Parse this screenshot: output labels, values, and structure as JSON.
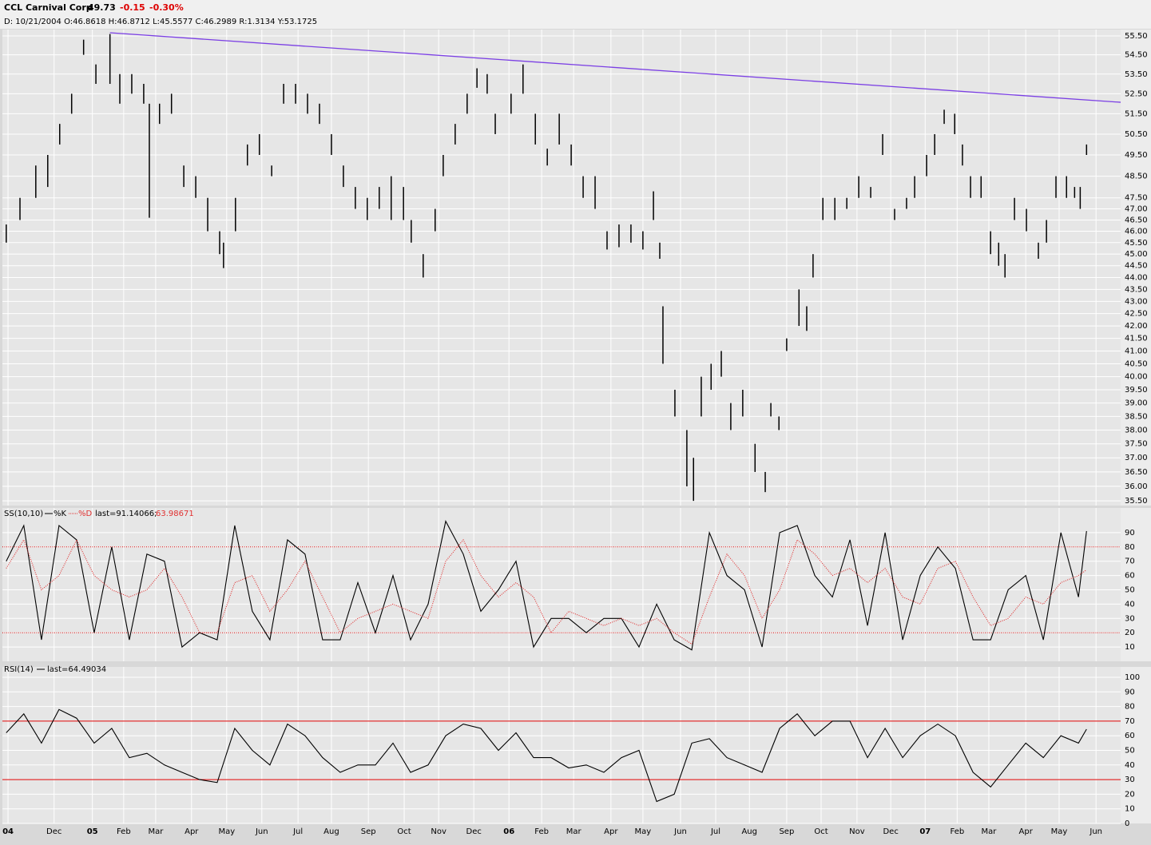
{
  "header": {
    "symbol": "CCL Carnival Corp",
    "last": "49.73",
    "change": "-0.15",
    "change_pct": "-0.30%",
    "info": "D: 10/21/2004 O:46.8618 H:46.8712 L:45.5577 C:46.2989 R:1.3134 Y:53.1725"
  },
  "chart_data": [
    {
      "type": "hilo",
      "log": true,
      "grid": true,
      "color": "#000000",
      "x": [
        0,
        0.39,
        0.84,
        1.18,
        1.52,
        1.86,
        2.2,
        2.55,
        2.95,
        3.23,
        3.57,
        3.91,
        4.07,
        4.36,
        4.7,
        5.05,
        5.39,
        5.73,
        6.07,
        6.18,
        6.52,
        6.86,
        7.2,
        7.55,
        7.89,
        8.23,
        8.57,
        8.91,
        9.25,
        9.59,
        9.93,
        10.27,
        10.61,
        10.95,
        11.3,
        11.52,
        11.86,
        12.2,
        12.43,
        12.77,
        13.11,
        13.39,
        13.68,
        13.91,
        14.36,
        14.7,
        15.05,
        15.39,
        15.73,
        16.07,
        16.41,
        16.75,
        17.09,
        17.43,
        17.77,
        18.11,
        18.41,
        18.59,
        18.68,
        19.02,
        19.36,
        19.55,
        19.77,
        20.05,
        20.34,
        20.61,
        20.95,
        21.3,
        21.59,
        21.75,
        21.98,
        22.2,
        22.55,
        22.77,
        22.95,
        23.23,
        23.57,
        23.91,
        24.25,
        24.59,
        24.93,
        25.27,
        25.61,
        25.84,
        26.18,
        26.41,
        26.68,
        26.98,
        27.2,
        27.43,
        27.73,
        28.0,
        28.23,
        28.41,
        28.68,
        29.02,
        29.36,
        29.59,
        29.86,
        30.16,
        30.39,
        30.55,
        30.73
      ],
      "high": [
        46.3,
        47.5,
        49.0,
        49.5,
        51.0,
        52.5,
        55.3,
        54.0,
        55.6,
        53.5,
        53.5,
        53.0,
        52.0,
        52.0,
        52.5,
        49.0,
        48.5,
        47.5,
        46.0,
        45.5,
        47.5,
        50.0,
        50.5,
        49.0,
        53.0,
        53.0,
        52.5,
        52.0,
        50.5,
        49.0,
        48.0,
        47.5,
        48.0,
        48.5,
        48.0,
        46.5,
        45.0,
        47.0,
        49.5,
        51.0,
        52.5,
        53.8,
        53.5,
        51.5,
        52.5,
        54.0,
        51.5,
        49.8,
        51.5,
        50.0,
        48.5,
        48.5,
        46.0,
        46.3,
        46.3,
        46.0,
        47.8,
        45.5,
        42.8,
        39.5,
        38.0,
        37.0,
        40.0,
        40.5,
        41.0,
        39.0,
        39.5,
        37.5,
        36.5,
        39.0,
        38.5,
        41.5,
        43.5,
        42.8,
        45.0,
        47.5,
        47.5,
        47.5,
        48.5,
        48.0,
        50.5,
        47.0,
        47.5,
        48.5,
        49.5,
        50.5,
        51.7,
        51.5,
        50.0,
        48.5,
        48.5,
        46.0,
        45.5,
        45.0,
        47.5,
        47.0,
        45.5,
        46.5,
        48.5,
        48.5,
        48.0,
        48.0,
        50.0
      ],
      "low": [
        45.5,
        46.5,
        47.5,
        48.0,
        50.0,
        51.5,
        54.5,
        53.0,
        53.0,
        52.0,
        52.5,
        52.0,
        46.6,
        51.0,
        51.5,
        48.0,
        47.5,
        46.0,
        45.0,
        44.4,
        46.0,
        49.0,
        49.5,
        48.5,
        52.0,
        52.0,
        51.5,
        51.0,
        49.5,
        48.0,
        47.0,
        46.5,
        47.0,
        46.5,
        46.5,
        45.5,
        44.0,
        46.0,
        48.5,
        50.0,
        51.5,
        52.8,
        52.5,
        50.5,
        51.5,
        52.5,
        50.0,
        49.0,
        50.0,
        49.0,
        47.5,
        47.0,
        45.2,
        45.3,
        45.5,
        45.2,
        46.5,
        44.8,
        40.5,
        38.5,
        36.0,
        35.5,
        38.5,
        39.5,
        40.0,
        38.0,
        38.5,
        36.5,
        35.8,
        38.5,
        38.0,
        41.0,
        42.0,
        41.8,
        44.0,
        46.5,
        46.5,
        47.0,
        47.5,
        47.5,
        49.5,
        46.5,
        47.0,
        47.5,
        48.5,
        49.5,
        51.0,
        50.5,
        49.0,
        47.5,
        47.5,
        45.0,
        44.5,
        44.0,
        46.5,
        46.0,
        44.8,
        45.5,
        47.5,
        47.5,
        47.5,
        47.0,
        49.5
      ],
      "trendline": {
        "x": [
          2.95,
          31.7
        ],
        "y": [
          55.67,
          52.07
        ],
        "color": "#7b3fe4"
      },
      "ylim": [
        35.34,
        55.84
      ],
      "yticks": [
        {
          "value": 55.5,
          "label": "55.50"
        },
        {
          "value": 54.5,
          "label": "54.50"
        },
        {
          "value": 53.5,
          "label": "53.50"
        },
        {
          "value": 52.5,
          "label": "52.50"
        },
        {
          "value": 51.5,
          "label": "51.50"
        },
        {
          "value": 50.5,
          "label": "50.50"
        },
        {
          "value": 49.5,
          "label": "49.50"
        },
        {
          "value": 48.5,
          "label": "48.50"
        },
        {
          "value": 47.5,
          "label": "47.50"
        },
        {
          "value": 47,
          "label": "47.00"
        },
        {
          "value": 46.5,
          "label": "46.50"
        },
        {
          "value": 46,
          "label": "46.00"
        },
        {
          "value": 45.5,
          "label": "45.50"
        },
        {
          "value": 45,
          "label": "45.00"
        },
        {
          "value": 44.5,
          "label": "44.50"
        },
        {
          "value": 44,
          "label": "44.00"
        },
        {
          "value": 43.5,
          "label": "43.50"
        },
        {
          "value": 43,
          "label": "43.00"
        },
        {
          "value": 42.5,
          "label": "42.50"
        },
        {
          "value": 42,
          "label": "42.00"
        },
        {
          "value": 41.5,
          "label": "41.50"
        },
        {
          "value": 41,
          "label": "41.00"
        },
        {
          "value": 40.5,
          "label": "40.50"
        },
        {
          "value": 40,
          "label": "40.00"
        },
        {
          "value": 39.5,
          "label": "39.50"
        },
        {
          "value": 39,
          "label": "39.00"
        },
        {
          "value": 38.5,
          "label": "38.50"
        },
        {
          "value": 38,
          "label": "38.00"
        },
        {
          "value": 37.5,
          "label": "37.50"
        },
        {
          "value": 37,
          "label": "37.00"
        },
        {
          "value": 36.5,
          "label": "36.50"
        },
        {
          "value": 36,
          "label": "36.00"
        },
        {
          "value": 35.5,
          "label": "35.50"
        }
      ]
    },
    {
      "type": "line",
      "grid": true,
      "title": "SS(10,10)",
      "last_label": "last=91.14066;",
      "last_label_2": "63.98671",
      "x": [
        0,
        0.5,
        1,
        1.5,
        2,
        2.5,
        3,
        3.5,
        4,
        4.5,
        5,
        5.5,
        6,
        6.5,
        7,
        7.5,
        8,
        8.5,
        9,
        9.5,
        10,
        10.5,
        11,
        11.5,
        12,
        12.5,
        13,
        13.5,
        14,
        14.5,
        15,
        15.5,
        16,
        16.5,
        17,
        17.5,
        18,
        18.5,
        19,
        19.5,
        20,
        20.5,
        21,
        21.5,
        22,
        22.5,
        23,
        23.5,
        24,
        24.5,
        25,
        25.5,
        26,
        26.5,
        27,
        27.5,
        28,
        28.5,
        29,
        29.5,
        30,
        30.5,
        30.73
      ],
      "series": [
        {
          "name": "%K",
          "color": "#000000",
          "style": "solid",
          "values": [
            70,
            95,
            15,
            95,
            85,
            20,
            80,
            15,
            75,
            70,
            10,
            20,
            15,
            95,
            35,
            15,
            85,
            75,
            15,
            15,
            55,
            20,
            60,
            15,
            40,
            98,
            75,
            35,
            50,
            70,
            10,
            30,
            30,
            20,
            30,
            30,
            10,
            40,
            15,
            8,
            90,
            60,
            50,
            10,
            90,
            95,
            60,
            45,
            85,
            25,
            90,
            15,
            60,
            80,
            65,
            15,
            15,
            50,
            60,
            15,
            90,
            45,
            91.14066
          ]
        },
        {
          "name": "%D",
          "color": "#e03030",
          "style": "dotted",
          "values": [
            65,
            85,
            50,
            60,
            85,
            60,
            50,
            45,
            50,
            65,
            45,
            20,
            20,
            55,
            60,
            35,
            50,
            70,
            45,
            20,
            30,
            35,
            40,
            35,
            30,
            70,
            85,
            60,
            45,
            55,
            45,
            20,
            35,
            30,
            25,
            30,
            25,
            30,
            20,
            12,
            45,
            75,
            60,
            30,
            50,
            85,
            75,
            60,
            65,
            55,
            65,
            45,
            40,
            65,
            70,
            45,
            25,
            30,
            45,
            40,
            55,
            60,
            63.98671
          ]
        }
      ],
      "ref_lines": [
        {
          "value": 80,
          "color": "#cc0000",
          "style": "dotted"
        },
        {
          "value": 20,
          "color": "#cc0000",
          "style": "dotted"
        }
      ],
      "ylim": [
        0,
        100
      ],
      "yticks": [
        10,
        20,
        30,
        40,
        50,
        60,
        70,
        80,
        90
      ]
    },
    {
      "type": "line",
      "grid": true,
      "title": "RSI(14)",
      "last_label": "last=64.49034",
      "x": [
        0,
        0.5,
        1,
        1.5,
        2,
        2.5,
        3,
        3.5,
        4,
        4.5,
        5,
        5.5,
        6,
        6.5,
        7,
        7.5,
        8,
        8.5,
        9,
        9.5,
        10,
        10.5,
        11,
        11.5,
        12,
        12.5,
        13,
        13.5,
        14,
        14.5,
        15,
        15.5,
        16,
        16.5,
        17,
        17.5,
        18,
        18.5,
        19,
        19.5,
        20,
        20.5,
        21,
        21.5,
        22,
        22.5,
        23,
        23.5,
        24,
        24.5,
        25,
        25.5,
        26,
        26.5,
        27,
        27.5,
        28,
        28.5,
        29,
        29.5,
        30,
        30.5,
        30.73
      ],
      "series": [
        {
          "color": "#000000",
          "style": "solid",
          "values": [
            62,
            75,
            55,
            78,
            72,
            55,
            65,
            45,
            48,
            40,
            35,
            30,
            28,
            65,
            50,
            40,
            68,
            60,
            45,
            35,
            40,
            40,
            55,
            35,
            40,
            60,
            68,
            65,
            50,
            62,
            45,
            45,
            38,
            40,
            35,
            45,
            50,
            15,
            20,
            55,
            58,
            45,
            40,
            35,
            65,
            75,
            60,
            70,
            70,
            45,
            65,
            45,
            60,
            68,
            60,
            35,
            25,
            40,
            55,
            45,
            60,
            55,
            64.49034
          ]
        }
      ],
      "ref_lines": [
        {
          "value": 70,
          "color": "#dd0000",
          "style": "solid"
        },
        {
          "value": 30,
          "color": "#dd0000",
          "style": "solid"
        }
      ],
      "ylim": [
        0,
        100
      ],
      "yticks": [
        0,
        10,
        20,
        30,
        40,
        50,
        60,
        70,
        80,
        90,
        100
      ],
      "xlim": [
        -0.11,
        31.7
      ],
      "xticks": [
        {
          "value": 0.05,
          "label": "04"
        },
        {
          "value": 1.36,
          "label": "Dec"
        },
        {
          "value": 2.45,
          "label": "05"
        },
        {
          "value": 3.34,
          "label": "Feb"
        },
        {
          "value": 4.25,
          "label": "Mar"
        },
        {
          "value": 5.27,
          "label": "Apr"
        },
        {
          "value": 6.27,
          "label": "May"
        },
        {
          "value": 7.27,
          "label": "Jun"
        },
        {
          "value": 8.3,
          "label": "Jul"
        },
        {
          "value": 9.25,
          "label": "Aug"
        },
        {
          "value": 10.3,
          "label": "Sep"
        },
        {
          "value": 11.32,
          "label": "Oct"
        },
        {
          "value": 12.3,
          "label": "Nov"
        },
        {
          "value": 13.3,
          "label": "Dec"
        },
        {
          "value": 14.3,
          "label": "06"
        },
        {
          "value": 15.23,
          "label": "Feb"
        },
        {
          "value": 16.14,
          "label": "Mar"
        },
        {
          "value": 17.2,
          "label": "Apr"
        },
        {
          "value": 18.11,
          "label": "May"
        },
        {
          "value": 19.18,
          "label": "Jun"
        },
        {
          "value": 20.18,
          "label": "Jul"
        },
        {
          "value": 21.14,
          "label": "Aug"
        },
        {
          "value": 22.2,
          "label": "Sep"
        },
        {
          "value": 23.18,
          "label": "Oct"
        },
        {
          "value": 24.2,
          "label": "Nov"
        },
        {
          "value": 25.16,
          "label": "Dec"
        },
        {
          "value": 26.14,
          "label": "07"
        },
        {
          "value": 27.05,
          "label": "Feb"
        },
        {
          "value": 27.95,
          "label": "Mar"
        },
        {
          "value": 29,
          "label": "Apr"
        },
        {
          "value": 29.95,
          "label": "May"
        },
        {
          "value": 31,
          "label": "Jun"
        }
      ]
    }
  ]
}
